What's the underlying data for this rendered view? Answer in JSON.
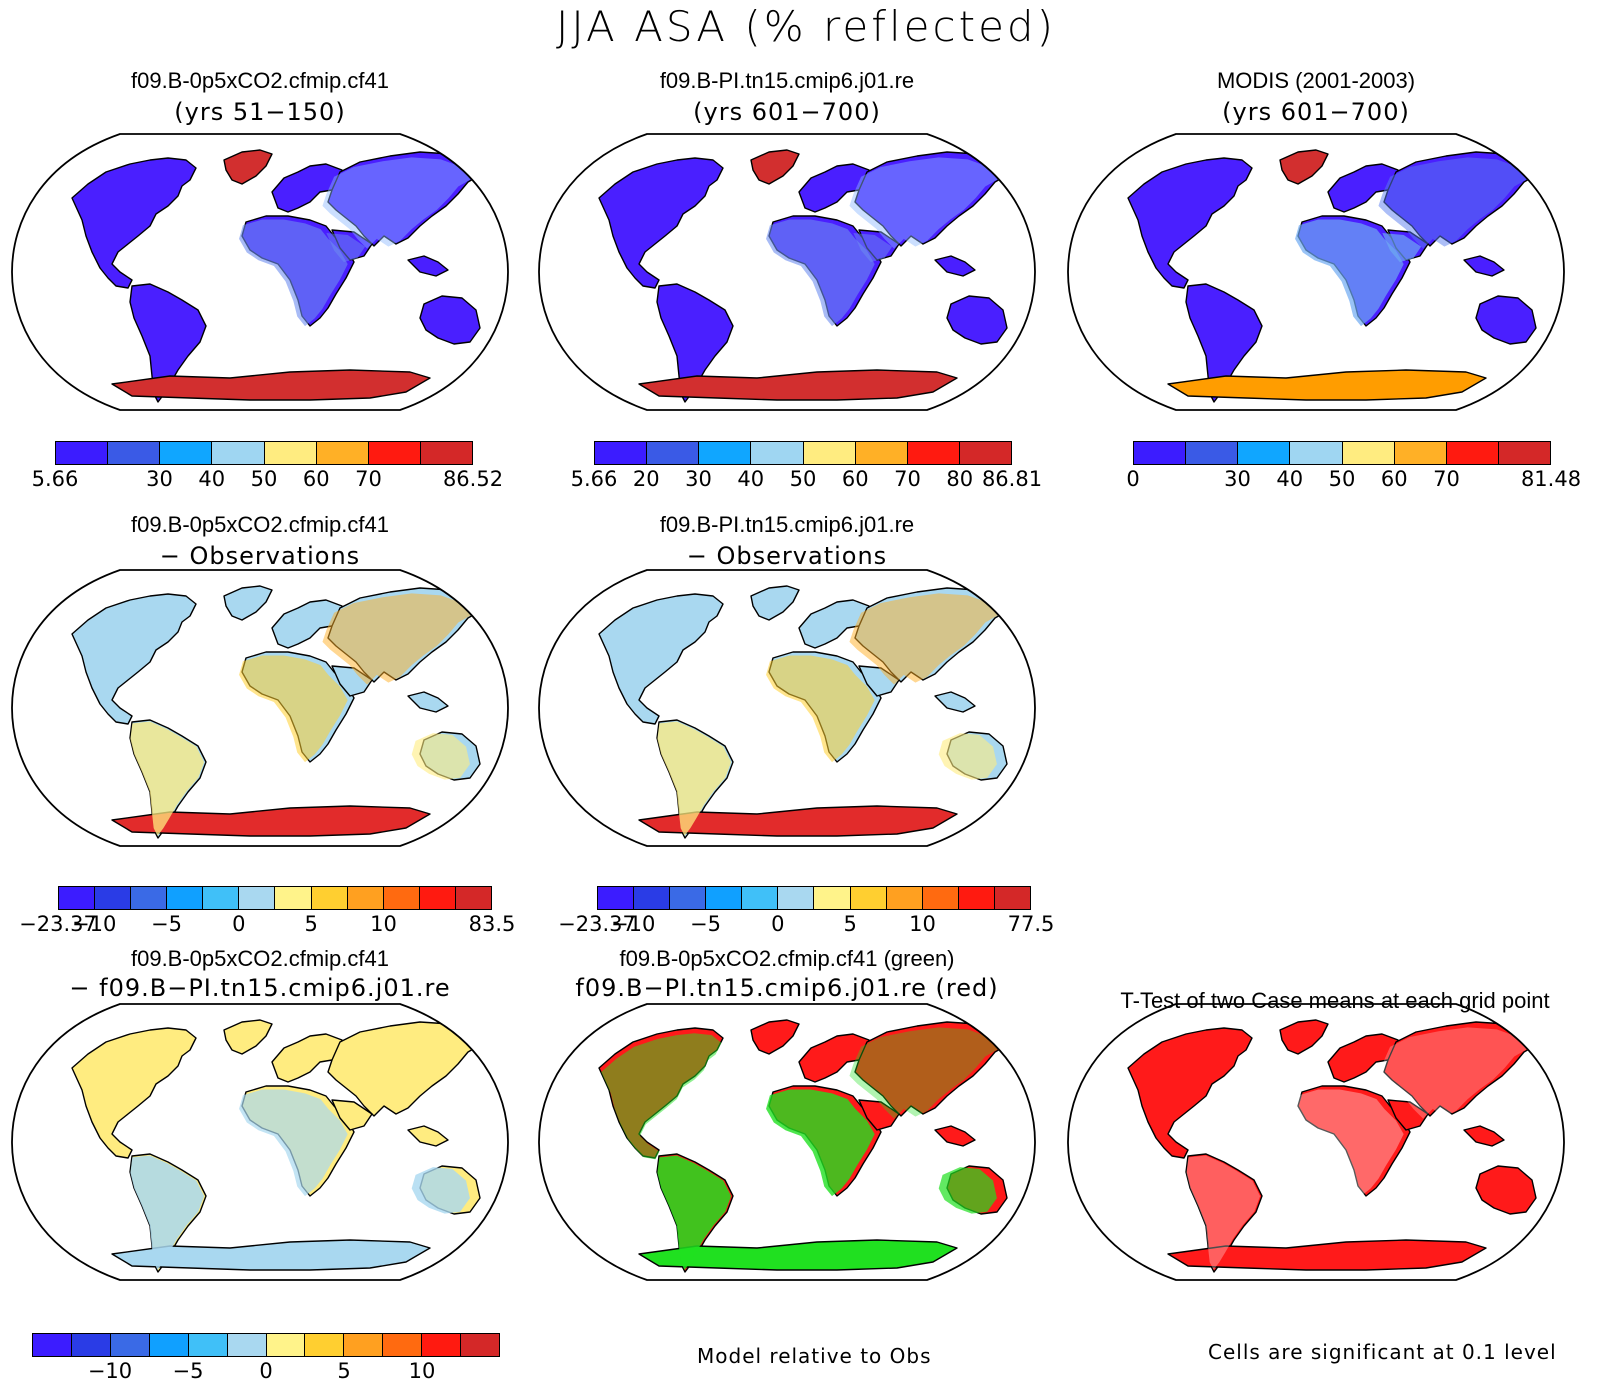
{
  "title": "JJA ASA (% reflected)",
  "panels": [
    {
      "line1": "f09.B-0p5xCO2.cfmip.cf41",
      "line2": "(yrs 51−150)",
      "scheme": "abs",
      "antarctica": "#d22f2f"
    },
    {
      "line1": "f09.B-PI.tn15.cmip6.j01.re",
      "line2": "(yrs 601−700)",
      "scheme": "abs",
      "antarctica": "#d22f2f"
    },
    {
      "line1": "MODIS (2001-2003)",
      "line2": "(yrs 601−700)",
      "scheme": "obs",
      "antarctica": "#ff9d00"
    },
    {
      "line1": "f09.B-0p5xCO2.cfmip.cf41",
      "line2": "− Observations",
      "scheme": "diff",
      "antarctica": "#e22b2b"
    },
    {
      "line1": "f09.B-PI.tn15.cmip6.j01.re",
      "line2": "− Observations",
      "scheme": "diff",
      "antarctica": "#e22b2b"
    },
    {
      "line1": "f09.B-0p5xCO2.cfmip.cf41",
      "line2": "− f09.B−PI.tn15.cmip6.j01.re",
      "scheme": "cmp",
      "antarctica": "#a9d8f0"
    },
    {
      "line1": "f09.B-0p5xCO2.cfmip.cf41 (green)",
      "line2": "f09.B−PI.tn15.cmip6.j01.re (red)",
      "scheme": "rg",
      "antarctica": "#20e020"
    },
    {
      "line1": "T-Test of two Case means at each grid point",
      "line2": "",
      "scheme": "ttest",
      "antarctica": "#ff1a1a"
    }
  ],
  "colorbars": [
    {
      "colors": [
        "#3c1cff",
        "#3a5ae6",
        "#10a6ff",
        "#9fd6f2",
        "#ffec80",
        "#ffb026",
        "#ff1a10",
        "#d42828"
      ],
      "ticks": [
        "5.66",
        "30",
        "40",
        "50",
        "60",
        "70",
        "86.52"
      ],
      "tickpos": [
        0,
        2,
        3,
        4,
        5,
        6,
        8
      ]
    },
    {
      "colors": [
        "#3c1cff",
        "#3a5ae6",
        "#10a6ff",
        "#9fd6f2",
        "#ffec80",
        "#ffb026",
        "#ff1a10",
        "#d42828"
      ],
      "ticks": [
        "5.66",
        "20",
        "30",
        "40",
        "50",
        "60",
        "70",
        "80",
        "86.81"
      ],
      "tickpos": [
        0,
        1,
        2,
        3,
        4,
        5,
        6,
        7,
        8
      ]
    },
    {
      "colors": [
        "#3c1cff",
        "#3a5ae6",
        "#10a6ff",
        "#9fd6f2",
        "#ffec80",
        "#ffb026",
        "#ff1a10",
        "#d42828"
      ],
      "ticks": [
        "0",
        "30",
        "40",
        "50",
        "60",
        "70",
        "81.48"
      ],
      "tickpos": [
        0,
        2,
        3,
        4,
        5,
        6,
        8
      ]
    },
    {
      "colors": [
        "#3c1cff",
        "#2a3ce6",
        "#3a6ae6",
        "#10a0ff",
        "#40c0f8",
        "#a9d8f0",
        "#fff38a",
        "#ffcf30",
        "#ffa020",
        "#ff6a10",
        "#ff1a10",
        "#d42828"
      ],
      "ticks": [
        "−23.37",
        "−10",
        "−5",
        "0",
        "5",
        "10",
        "83.5"
      ],
      "tickpos": [
        0,
        1,
        3,
        5,
        7,
        9,
        12
      ]
    },
    {
      "colors": [
        "#3c1cff",
        "#2a3ce6",
        "#3a6ae6",
        "#10a0ff",
        "#40c0f8",
        "#a9d8f0",
        "#fff38a",
        "#ffcf30",
        "#ffa020",
        "#ff6a10",
        "#ff1a10",
        "#d42828"
      ],
      "ticks": [
        "−23.37",
        "−10",
        "−5",
        "0",
        "5",
        "10",
        "77.5"
      ],
      "tickpos": [
        0,
        1,
        3,
        5,
        7,
        9,
        12
      ]
    },
    {
      "colors": [
        "#3c1cff",
        "#2a3ce6",
        "#3a6ae6",
        "#10a0ff",
        "#40c0f8",
        "#a9d8f0",
        "#fff38a",
        "#ffcf30",
        "#ffa020",
        "#ff6a10",
        "#ff1a10",
        "#d42828"
      ],
      "ticks": [
        "−10",
        "−5",
        "0",
        "5",
        "10"
      ],
      "tickpos": [
        2,
        4,
        6,
        8,
        10
      ]
    }
  ],
  "notes": {
    "relative": "Model relative to Obs",
    "significance": "Cells are significant at 0.1 level"
  }
}
